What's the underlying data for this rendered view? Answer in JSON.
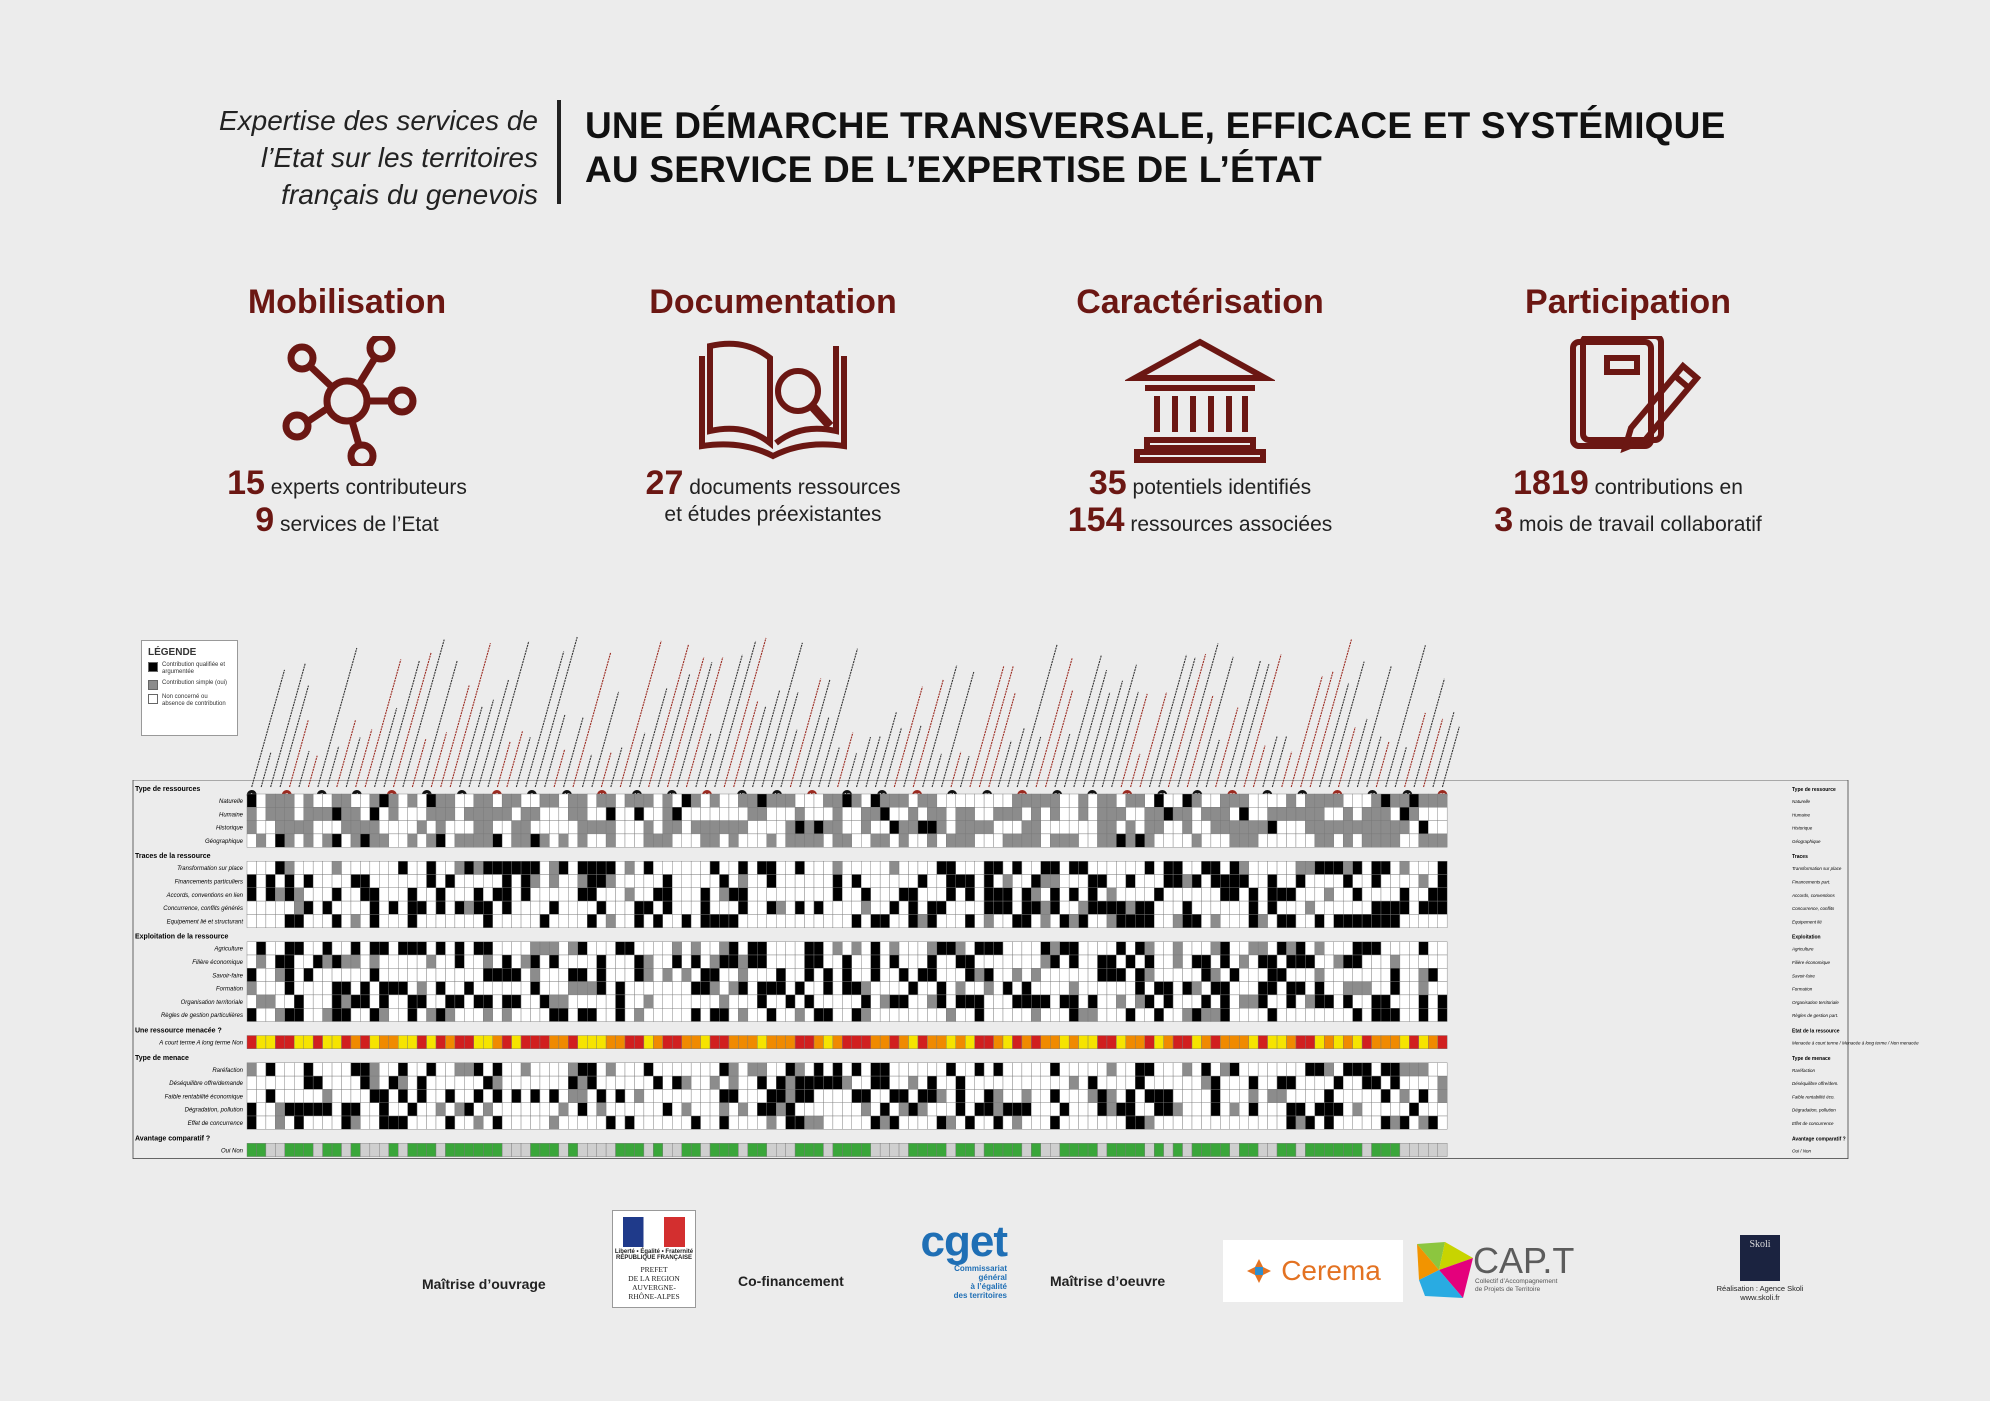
{
  "header": {
    "subtitle": "Expertise des services de\nl’Etat sur les territoires\nfrançais du genevois",
    "title": "UNE DÉMARCHE TRANSVERSALE, EFFICACE ET SYSTÉMIQUE\nAU SERVICE DE L’EXPERTISE DE L’ÉTAT"
  },
  "colors": {
    "accent": "#6b1713",
    "black_cell": "#000000",
    "grey_cell": "#8c8c8c",
    "green": "#3aa63a",
    "red": "#d11f1f",
    "orange": "#f08a00",
    "yellow": "#f6e400"
  },
  "stats": [
    {
      "title": "Mobilisation",
      "icon": "network-icon",
      "l1_num": "15",
      "l1_text": "experts contributeurs",
      "l2_num": "9",
      "l2_text": "services de l’Etat"
    },
    {
      "title": "Documentation",
      "icon": "book-search-icon",
      "l1_num": "27",
      "l1_text": "documents ressources",
      "l2_num": "",
      "l2_text": "et études préexistantes"
    },
    {
      "title": "Caractérisation",
      "icon": "institution-icon",
      "l1_num": "35",
      "l1_text": "potentiels identifiés",
      "l2_num": "154",
      "l2_text": "ressources associées"
    },
    {
      "title": "Participation",
      "icon": "notebook-pencil-icon",
      "l1_num": "1819",
      "l1_text": "contributions en",
      "l2_num": "3",
      "l2_text": "mois de travail collaboratif"
    }
  ],
  "legend": {
    "title": "LÉGENDE",
    "items": [
      "Contribution qualifiée et argumentée",
      "Contribution simple (oui)",
      "Non concerné ou absence de contribution"
    ]
  },
  "grid": {
    "sections": [
      {
        "title": "Type de ressources",
        "right": "Type de ressource",
        "rows": [
          [
            "Naturelle",
            "Naturelle"
          ],
          [
            "Humaine",
            "Humaine"
          ],
          [
            "Historique",
            "Historique"
          ],
          [
            "Géographique",
            "Géographique"
          ]
        ]
      },
      {
        "title": "Traces de la ressource",
        "right": "Traces",
        "rows": [
          [
            "Transformation sur place",
            "Transformation sur place"
          ],
          [
            "Financements particuliers",
            "Financements part."
          ],
          [
            "Accords, conventions en lien",
            "Accords, conventions"
          ],
          [
            "Concurrence, conflits générés",
            "Concurrence, conflits"
          ],
          [
            "Equipement lié et structurant",
            "Equipement lié"
          ]
        ]
      },
      {
        "title": "Exploitation de la ressource",
        "right": "Exploitation",
        "rows": [
          [
            "Agriculture",
            "Agriculture"
          ],
          [
            "Filière économique",
            "Filière économique"
          ],
          [
            "Savoir-faire",
            "Savoir-faire"
          ],
          [
            "Formation",
            "Formation"
          ],
          [
            "Organisation territoriale",
            "Organisation territoriale"
          ],
          [
            "Règles de gestion particulières",
            "Règles de gestion part."
          ]
        ]
      },
      {
        "title": "Une ressource menacée ?",
        "right": "Etat de la ressource",
        "rows": [
          [
            "A court terme  A long terme  Non",
            "Menacée à court terme / Menacée à long terme / Non menacée"
          ]
        ]
      },
      {
        "title": "Type de menace",
        "right": "Type de menace",
        "rows": [
          [
            "Raréfaction",
            "Raréfaction"
          ],
          [
            "Déséquilibre offre/demande",
            "Déséquilibre offre/dem."
          ],
          [
            "Faible rentabilité économique",
            "Faible rentabilité éco."
          ],
          [
            "Dégradation, pollution",
            "Dégradation, pollution"
          ],
          [
            "Effet de concurrence",
            "Effet de concurrence"
          ]
        ]
      },
      {
        "title": "Avantage comparatif ?",
        "right": "Avantage comparatif ?",
        "rows": [
          [
            "Oui  Non",
            "Oui / Non"
          ]
        ]
      }
    ],
    "potential_numbers": [
      "1",
      "2",
      "3",
      "4",
      "5",
      "6",
      "7",
      "8",
      "9",
      "10",
      "11",
      "12",
      "13",
      "14",
      "15",
      "16",
      "17",
      "18",
      "19",
      "20",
      "21",
      "22",
      "23",
      "24",
      "25",
      "26",
      "27",
      "28",
      "29",
      "30",
      "31",
      "32",
      "33",
      "34",
      "35"
    ]
  },
  "footer": {
    "maitrise_ouvrage": "Maîtrise d’ouvrage",
    "cofinancement": "Co-financement",
    "maitrise_oeuvre": "Maîtrise d’oeuvre",
    "prefet_motto": "Liberté • Égalité • Fraternité",
    "prefet_rf": "RÉPUBLIQUE FRANÇAISE",
    "prefet_text": "PREFET\nDE LA REGION\nAUVERGNE-\nRHÔNE-ALPES",
    "cget_word": "cget",
    "cget_sub": "Commissariat\ngénéral\nà l’égalité\ndes territoires",
    "cerema": "Cerema",
    "capt": "CAP.T",
    "capt_sub": "Collectif d’Accompagnement\nde Projets de Territoire",
    "skoli": "Skoli",
    "realisation": "Réalisation : Agence Skoli\nwww.skoli.fr"
  }
}
